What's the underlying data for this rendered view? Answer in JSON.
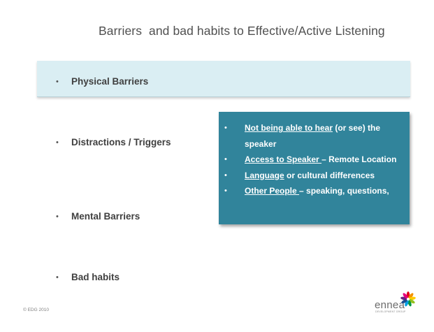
{
  "slide": {
    "title": "Barriers  and bad habits to Effective/Active Listening",
    "bullet_glyph": "•",
    "items": [
      {
        "label": "Physical Barriers"
      },
      {
        "label": "Distractions / Triggers"
      },
      {
        "label": "Mental Barriers"
      },
      {
        "label": "Bad habits"
      }
    ],
    "callout": {
      "bullet_glyph": "•",
      "items": [
        {
          "underlined": "Not being able to hear",
          "rest": " (or see) the speaker"
        },
        {
          "underlined": "Access to Speaker ",
          "rest": "– Remote Location"
        },
        {
          "underlined": "Language",
          "rest": " or cultural differences"
        },
        {
          "underlined": "Other People ",
          "rest": "– speaking, questions,"
        }
      ]
    },
    "footer": {
      "copyright": "© EDG 2010",
      "logo_text": "ennea",
      "logo_tagline": "DEVELOPMENT GROUP"
    },
    "colors": {
      "highlight_band": "#daeef3",
      "callout_bg": "#31849b",
      "title_text": "#505050",
      "body_text": "#404040"
    }
  }
}
